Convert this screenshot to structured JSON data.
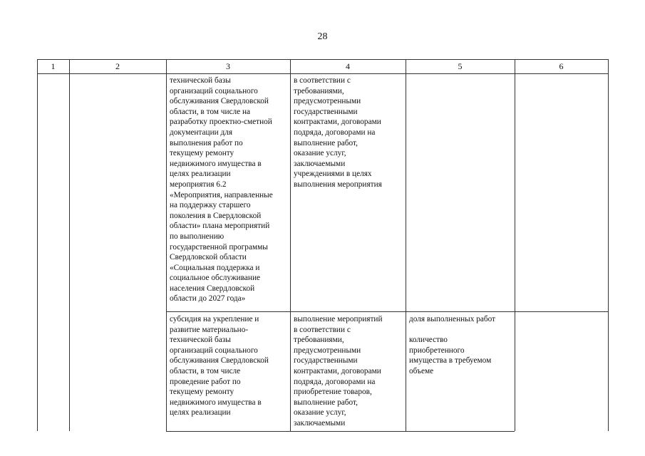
{
  "page_number": "28",
  "headers": [
    "1",
    "2",
    "3",
    "4",
    "5",
    "6"
  ],
  "rows": [
    {
      "c3": "технической базы\nорганизаций социального\nобслуживания Свердловской\nобласти, в том числе на\nразработку проектно-сметной\nдокументации для\nвыполнения работ по\nтекущему ремонту\nнедвижимого имущества в\nцелях реализации\nмероприятия 6.2\n«Мероприятия, направленные\nна поддержку старшего\nпоколения в Свердловской\nобласти» плана мероприятий\nпо выполнению\nгосударственной программы\nСвердловской области\n«Социальная поддержка и\nсоциальное обслуживание\nнаселения Свердловской\nобласти до 2027 года»",
      "c4": "в соответствии с\nтребованиями,\nпредусмотренными\nгосударственными\nконтрактами, договорами\nподряда, договорами на\nвыполнение работ,\nоказание услуг,\nзаключаемыми\nучреждениями в целях\nвыполнения мероприятия",
      "c5": ""
    },
    {
      "c3": "субсидия на укрепление и\nразвитие материально-\nтехнической базы\nорганизаций социального\nобслуживания Свердловской\nобласти, в том числе\nпроведение работ по\nтекущему ремонту\nнедвижимого имущества в\nцелях реализации",
      "c4": "выполнение мероприятий\nв соответствии с\nтребованиями,\nпредусмотренными\nгосударственными\nконтрактами, договорами\nподряда, договорами на\nприобретение товаров,\nвыполнение работ,\nоказание услуг,\nзаключаемыми",
      "c5": "доля выполненных работ\n\nколичество\nприобретенного\nимущества в требуемом\nобъеме"
    }
  ]
}
